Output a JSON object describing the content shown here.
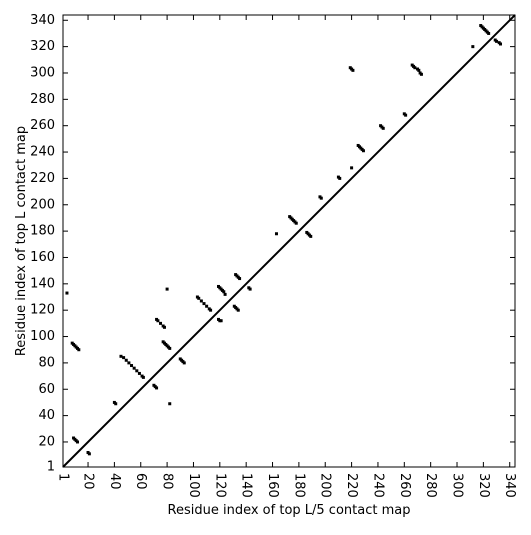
{
  "chart_data": {
    "type": "scatter",
    "x_label": "Residue index of top L/5 contact map",
    "y_label": "Residue index of top L contact map",
    "color": "#000000",
    "xlim": [
      1,
      344
    ],
    "ylim": [
      1,
      344
    ],
    "xticks": [
      1,
      20,
      40,
      60,
      80,
      100,
      120,
      140,
      160,
      180,
      200,
      220,
      240,
      260,
      280,
      300,
      320,
      340
    ],
    "yticks": [
      1,
      20,
      40,
      60,
      80,
      100,
      120,
      140,
      160,
      180,
      200,
      220,
      240,
      260,
      280,
      300,
      320,
      340
    ],
    "diagonal": true,
    "x": [
      8,
      9,
      10,
      11,
      12,
      13,
      9,
      10,
      11,
      12,
      20,
      21,
      40,
      41,
      45,
      47,
      49,
      51,
      53,
      55,
      57,
      59,
      61,
      62,
      70,
      71,
      72,
      72,
      73,
      75,
      77,
      78,
      77,
      78,
      79,
      80,
      81,
      82,
      80,
      82,
      90,
      91,
      92,
      93,
      103,
      104,
      106,
      108,
      110,
      112,
      113,
      119,
      120,
      121,
      122,
      123,
      124,
      119,
      120,
      121,
      132,
      133,
      134,
      135,
      131,
      132,
      133,
      134,
      142,
      143,
      163,
      173,
      174,
      175,
      176,
      177,
      178,
      186,
      187,
      188,
      189,
      196,
      197,
      210,
      211,
      220,
      219,
      220,
      221,
      225,
      226,
      227,
      228,
      229,
      242,
      243,
      244,
      260,
      261,
      266,
      267,
      268,
      270,
      271,
      272,
      273,
      312,
      318,
      319,
      320,
      321,
      322,
      323,
      324,
      329,
      330,
      332,
      333,
      4
    ],
    "y": [
      95,
      94,
      93,
      92,
      91,
      90,
      23,
      22,
      21,
      20,
      12,
      11,
      50,
      49,
      85,
      84,
      82,
      80,
      78,
      76,
      74,
      72,
      70,
      69,
      63,
      62,
      61,
      113,
      112,
      110,
      108,
      107,
      96,
      95,
      94,
      93,
      92,
      91,
      136,
      49,
      83,
      82,
      81,
      80,
      130,
      129,
      127,
      125,
      123,
      121,
      120,
      138,
      137,
      136,
      135,
      134,
      132,
      113,
      112,
      112,
      147,
      146,
      145,
      144,
      123,
      122,
      121,
      120,
      137,
      136,
      178,
      191,
      190,
      189,
      188,
      187,
      186,
      179,
      178,
      177,
      176,
      206,
      205,
      221,
      220,
      228,
      304,
      303,
      302,
      245,
      244,
      243,
      242,
      241,
      260,
      259,
      258,
      269,
      268,
      306,
      305,
      304,
      303,
      302,
      300,
      299,
      320,
      336,
      335,
      334,
      333,
      332,
      331,
      330,
      325,
      324,
      323,
      322,
      133
    ]
  }
}
